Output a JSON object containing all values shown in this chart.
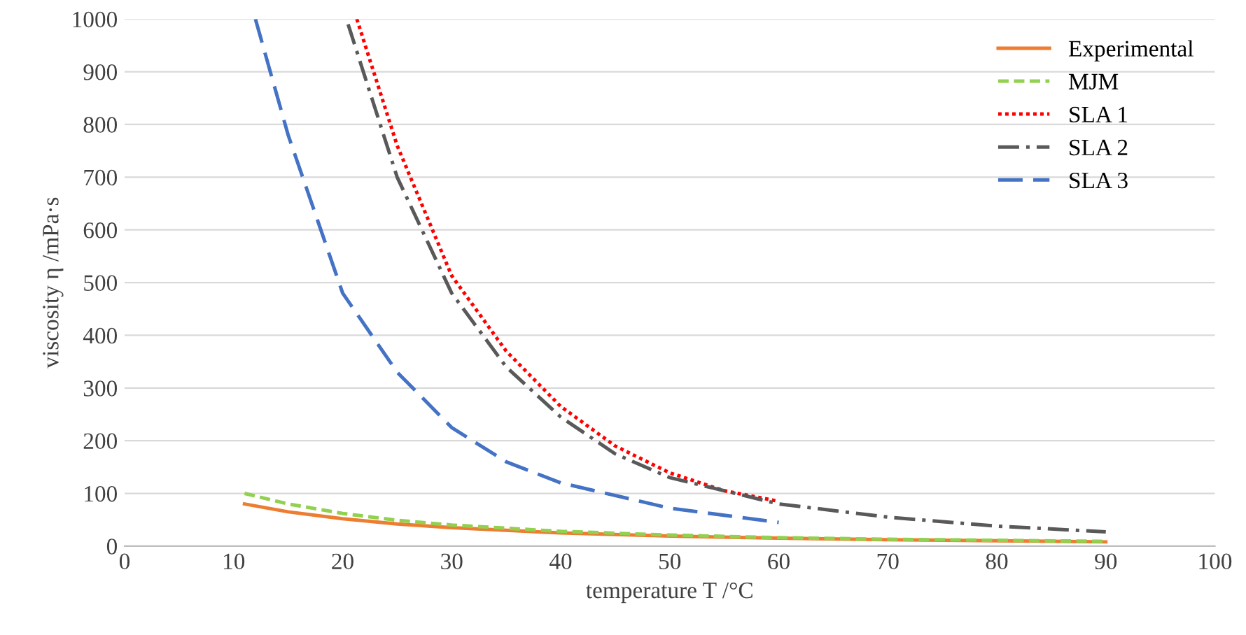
{
  "chart_data": {
    "type": "line",
    "xlabel": "temperature T /°C",
    "ylabel": "viscosity η /mPa·s",
    "xlim": [
      0,
      100
    ],
    "xticks": [
      0,
      10,
      20,
      30,
      40,
      50,
      60,
      70,
      80,
      90,
      100
    ],
    "ylim": [
      0,
      1000
    ],
    "yticks": [
      0,
      100,
      200,
      300,
      400,
      500,
      600,
      700,
      800,
      900,
      1000
    ],
    "grid": "y",
    "legend": "top right",
    "marker": "none",
    "series": [
      {
        "name": "Experimental",
        "color": "#ed7d31",
        "line_style": "solid",
        "x": [
          11,
          15,
          20,
          25,
          30,
          40,
          50,
          60,
          70,
          80,
          90
        ],
        "values": [
          80,
          65,
          52,
          42,
          35,
          25,
          19,
          15,
          12,
          10,
          8
        ]
      },
      {
        "name": "MJM",
        "color": "#92d050",
        "line_style": "dashed",
        "x": [
          11,
          15,
          20,
          25,
          30,
          40,
          50,
          60,
          70,
          80,
          90
        ],
        "values": [
          100,
          80,
          62,
          49,
          40,
          28,
          21,
          16,
          13,
          11,
          9
        ]
      },
      {
        "name": "SLA 1",
        "color": "#ff0000",
        "line_style": "dotted",
        "x": [
          21.3,
          25,
          30,
          35,
          40,
          45,
          50,
          55,
          60
        ],
        "values": [
          1000,
          760,
          513,
          370,
          265,
          190,
          139,
          105,
          85
        ]
      },
      {
        "name": "SLA 2",
        "color": "#595959",
        "line_style": "dashdot",
        "x": [
          20.5,
          25,
          30,
          35,
          40,
          45,
          50,
          60,
          70,
          80,
          90
        ],
        "values": [
          990,
          700,
          480,
          340,
          245,
          175,
          130,
          80,
          55,
          38,
          27
        ]
      },
      {
        "name": "SLA 3",
        "color": "#4472c4",
        "line_style": "longdash",
        "x": [
          12,
          15,
          20,
          25,
          30,
          35,
          40,
          50,
          60
        ],
        "values": [
          1000,
          780,
          480,
          330,
          225,
          160,
          120,
          72,
          45
        ]
      }
    ]
  }
}
